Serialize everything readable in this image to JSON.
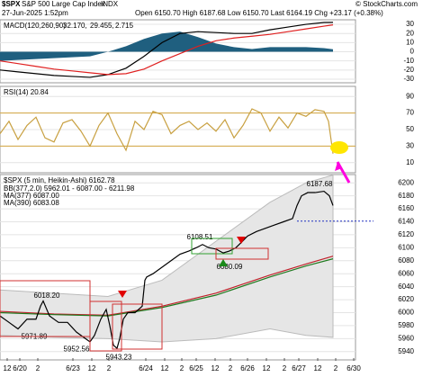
{
  "header": {
    "symbol": "$SPX",
    "name": "S&P 500 Large Cap Index",
    "exchange": "INDX",
    "date": "27-Jun-2025 1:52pm",
    "ohlc": "Open 6150.70  High 6187.68  Low 6150.70  Last 6164.19  Chg +23.17 (+0.38%)",
    "credit": "© StockCharts.com"
  },
  "chart_data": [
    {
      "type": "line",
      "labels": [
        {
          "text": "MACD(120,260,90)",
          "color": "#000000"
        },
        {
          "text": "32.170,",
          "color": "#000000"
        },
        {
          "text": "29.455,",
          "color": "#e02020"
        },
        {
          "text": "2.715",
          "color": "#1a6aa0"
        }
      ],
      "ylim": [
        -32,
        33
      ],
      "yticks": [
        30,
        20,
        10,
        0,
        -10,
        -20,
        -30
      ],
      "xlim": [
        0,
        395
      ],
      "series": [
        {
          "style": "histogram",
          "color": "#1f5f7f",
          "x": [
            0,
            20,
            40,
            60,
            80,
            100,
            120,
            140,
            160,
            180,
            200,
            220,
            240,
            260,
            280,
            300,
            320,
            340,
            360,
            370
          ],
          "values": [
            -10,
            -9,
            -8,
            -7,
            -6,
            -5,
            0,
            6,
            14,
            20,
            22,
            16,
            9,
            5,
            3,
            5,
            5,
            5,
            4,
            2.715
          ]
        },
        {
          "style": "line",
          "color": "#000000",
          "x": [
            0,
            20,
            40,
            60,
            80,
            100,
            120,
            140,
            160,
            180,
            200,
            220,
            240,
            260,
            280,
            300,
            320,
            340,
            360,
            370
          ],
          "values": [
            -20,
            -22,
            -24,
            -26,
            -27,
            -28,
            -25,
            -18,
            -5,
            10,
            20,
            22,
            21,
            20,
            20,
            24,
            27,
            30,
            32,
            32.17
          ]
        },
        {
          "style": "line",
          "color": "#e02020",
          "x": [
            0,
            20,
            40,
            60,
            80,
            100,
            120,
            140,
            160,
            180,
            200,
            220,
            240,
            260,
            280,
            300,
            320,
            340,
            360,
            370
          ],
          "values": [
            -10,
            -13,
            -16,
            -19,
            -21,
            -23,
            -25,
            -24,
            -19,
            -10,
            -2,
            6,
            12,
            15,
            17,
            19,
            22,
            25,
            28,
            29.455
          ]
        }
      ]
    },
    {
      "type": "line",
      "labels": [
        {
          "text": "RSI(14) 20.84",
          "color": "#000000"
        }
      ],
      "ylim": [
        0,
        100
      ],
      "yticks": [
        90,
        70,
        50,
        30,
        10
      ],
      "xlim": [
        0,
        395
      ],
      "ref_lines": [
        70,
        30
      ],
      "series": [
        {
          "style": "line",
          "color": "#c8a040",
          "x": [
            0,
            10,
            20,
            30,
            40,
            50,
            60,
            70,
            80,
            90,
            100,
            110,
            120,
            130,
            140,
            150,
            160,
            170,
            180,
            190,
            200,
            210,
            220,
            230,
            240,
            250,
            260,
            270,
            280,
            290,
            300,
            310,
            320,
            330,
            340,
            350,
            360,
            365,
            370
          ],
          "values": [
            45,
            60,
            38,
            55,
            65,
            40,
            35,
            58,
            62,
            48,
            30,
            55,
            70,
            45,
            25,
            60,
            50,
            72,
            68,
            45,
            55,
            60,
            50,
            58,
            48,
            62,
            40,
            55,
            75,
            70,
            48,
            65,
            52,
            70,
            66,
            74,
            72,
            60,
            20.84
          ]
        }
      ]
    },
    {
      "type": "line",
      "labels": [
        {
          "text": "$SPX (5 min, Heikin-Ashi) 6162.78",
          "color": "#000000"
        },
        {
          "text": "BB(377,2.0) 5962.01 - 6087.00 - 6211.98",
          "color": "#777777"
        },
        {
          "text": "MA(377) 6087.00",
          "color": "#c0202a"
        },
        {
          "text": "MA(390) 6083.08",
          "color": "#207a20"
        }
      ],
      "ylim": [
        5930,
        6210
      ],
      "yticks": [
        6200,
        6180,
        6160,
        6140,
        6120,
        6100,
        6080,
        6060,
        6040,
        6020,
        6000,
        5980,
        5960,
        5940
      ],
      "xlim": [
        0,
        395
      ],
      "xticks": [
        {
          "value": 8,
          "label": "12"
        },
        {
          "value": 22,
          "label": "6/20"
        },
        {
          "value": 42,
          "label": "2"
        },
        {
          "value": 81,
          "label": "6/23"
        },
        {
          "value": 102,
          "label": "12"
        },
        {
          "value": 121,
          "label": "2"
        },
        {
          "value": 162,
          "label": "6/24"
        },
        {
          "value": 183,
          "label": "12"
        },
        {
          "value": 202,
          "label": "2"
        },
        {
          "value": 218,
          "label": "6/25"
        },
        {
          "value": 239,
          "label": "12"
        },
        {
          "value": 256,
          "label": "2"
        },
        {
          "value": 275,
          "label": "6/26"
        },
        {
          "value": 296,
          "label": "12"
        },
        {
          "value": 316,
          "label": "2"
        },
        {
          "value": 332,
          "label": "6/27"
        },
        {
          "value": 353,
          "label": "12"
        },
        {
          "value": 373,
          "label": "2"
        },
        {
          "value": 393,
          "label": "6/30"
        }
      ],
      "prev_close": 6141.02,
      "band": {
        "color": "#e6e6e6",
        "x": [
          0,
          60,
          120,
          180,
          240,
          300,
          340,
          370
        ],
        "upper": [
          6035,
          6030,
          6025,
          6050,
          6110,
          6170,
          6200,
          6212
        ],
        "lower": [
          5965,
          5962,
          5960,
          5955,
          5960,
          5975,
          5965,
          5962
        ]
      },
      "series": [
        {
          "style": "line",
          "color": "#c0202a",
          "x": [
            0,
            60,
            120,
            180,
            240,
            300,
            340,
            370
          ],
          "values": [
            6002,
            5998,
            5996,
            6010,
            6030,
            6058,
            6075,
            6087
          ]
        },
        {
          "style": "line",
          "color": "#207a20",
          "x": [
            0,
            60,
            120,
            180,
            240,
            300,
            340,
            370
          ],
          "values": [
            6000,
            5997,
            5995,
            6008,
            6027,
            6055,
            6072,
            6083
          ]
        },
        {
          "style": "line",
          "color": "#000000",
          "x": [
            0,
            10,
            20,
            30,
            40,
            45,
            48,
            55,
            65,
            75,
            85,
            95,
            100,
            105,
            112,
            118,
            122,
            126,
            130,
            133,
            137,
            142,
            150,
            158,
            161,
            163,
            170,
            180,
            190,
            200,
            210,
            218,
            225,
            232,
            240,
            248,
            255,
            262,
            268,
            275,
            285,
            295,
            305,
            315,
            325,
            330,
            335,
            342,
            350,
            360,
            366,
            370
          ],
          "values": [
            5995,
            5985,
            5975,
            5990,
            5990,
            6010,
            6018,
            5995,
            5985,
            5985,
            5970,
            5960,
            5955,
            5965,
            5990,
            6005,
            5980,
            5950,
            5945,
            5960,
            5990,
            6000,
            6000,
            6010,
            6050,
            6055,
            6060,
            6070,
            6080,
            6090,
            6095,
            6100,
            6105,
            6100,
            6098,
            6092,
            6095,
            6100,
            6108,
            6118,
            6125,
            6130,
            6135,
            6140,
            6145,
            6165,
            6180,
            6185,
            6185,
            6187,
            6180,
            6165
          ]
        }
      ],
      "annotations": [
        {
          "text": "6187.68",
          "x": 355,
          "y": 6198
        },
        {
          "text": "6108.51",
          "x": 222,
          "y": 6116
        },
        {
          "text": "6080.09",
          "x": 255,
          "y": 6070
        },
        {
          "text": "6018.20",
          "x": 52,
          "y": 6026
        },
        {
          "text": "5971.89",
          "x": 38,
          "y": 5963
        },
        {
          "text": "5952.56",
          "x": 85,
          "y": 5943
        },
        {
          "text": "5943.23",
          "x": 132,
          "y": 5931
        }
      ]
    }
  ]
}
